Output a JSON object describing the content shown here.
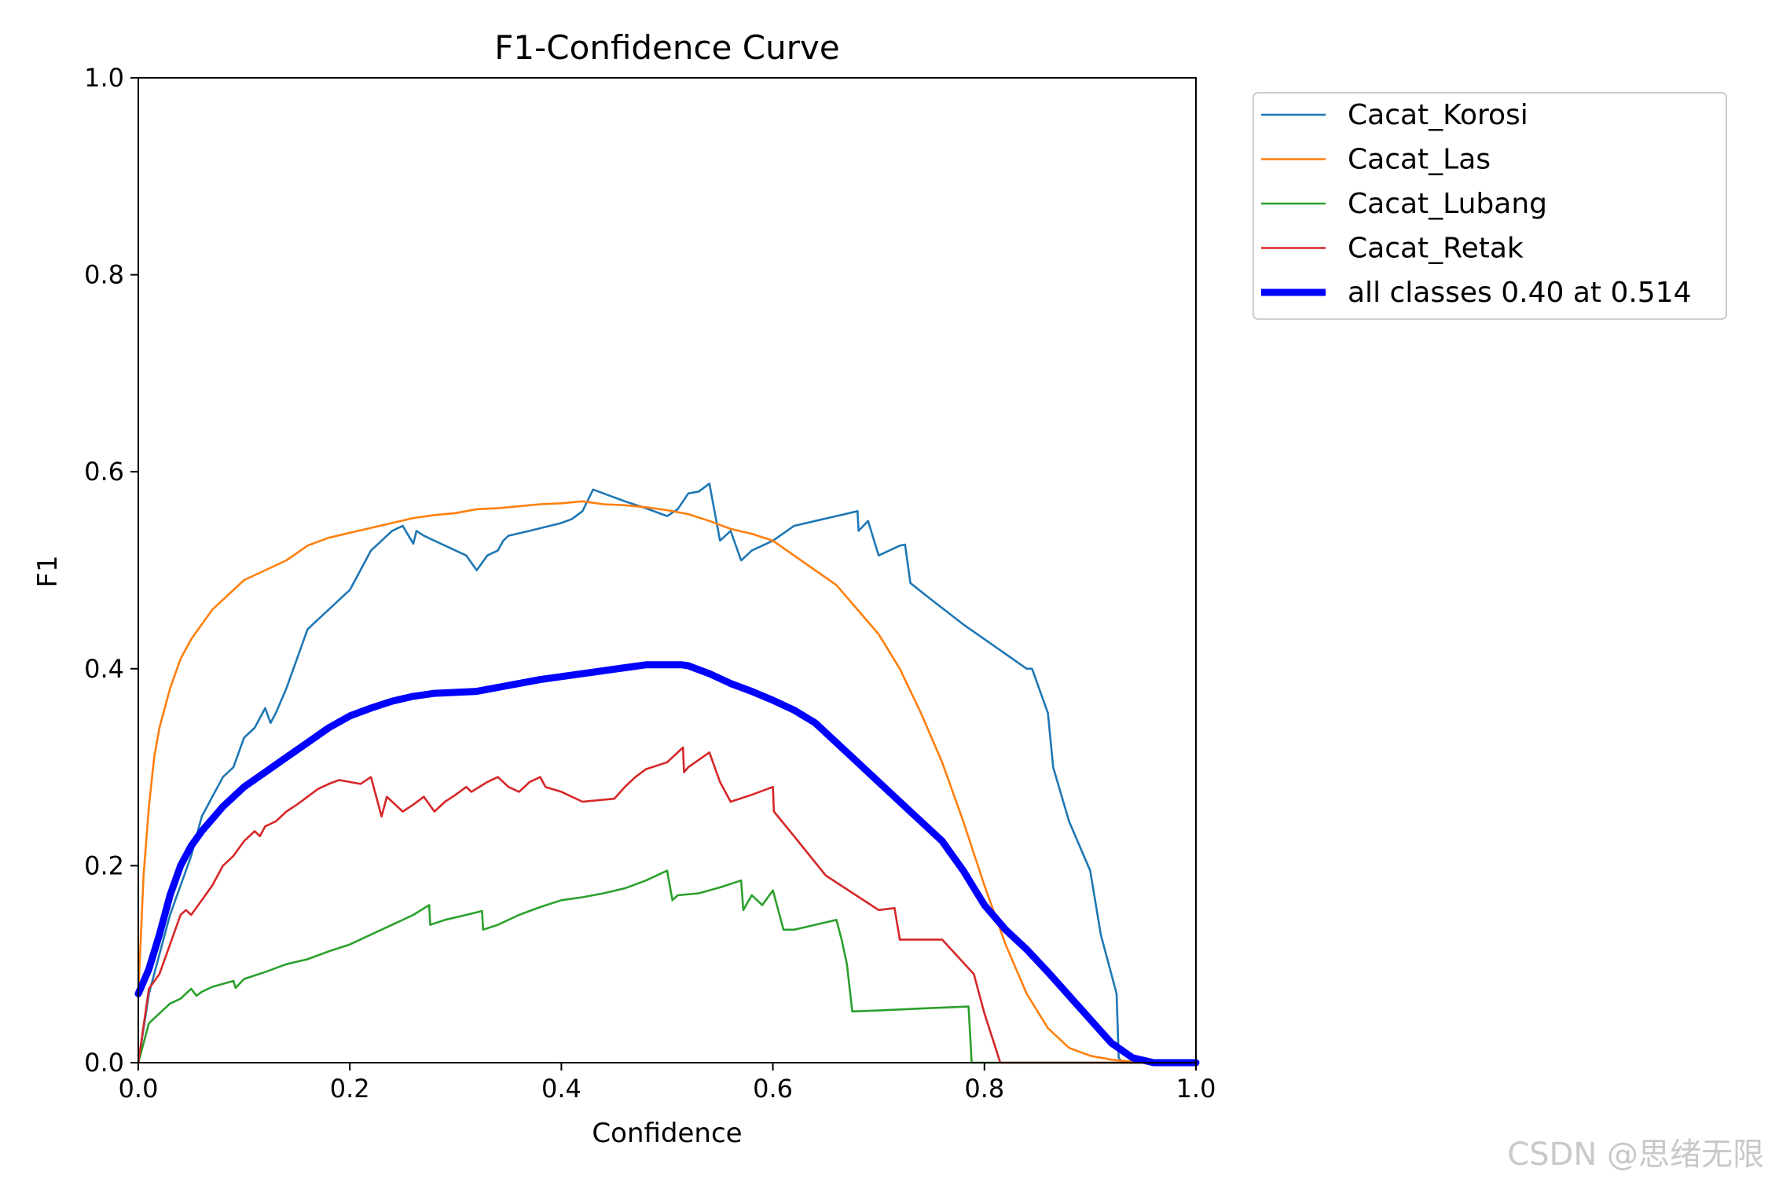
{
  "chart_data": {
    "type": "line",
    "title": "F1-Confidence Curve",
    "xlabel": "Confidence",
    "ylabel": "F1",
    "xlim": [
      0,
      1
    ],
    "ylim": [
      0,
      1
    ],
    "xticks": [
      "0.0",
      "0.2",
      "0.4",
      "0.6",
      "0.8",
      "1.0"
    ],
    "yticks": [
      "0.0",
      "0.2",
      "0.4",
      "0.6",
      "0.8",
      "1.0"
    ],
    "grid": false,
    "legend_position": "outside-top-right",
    "series": [
      {
        "name": "Cacat_Korosi",
        "color": "#1f77b4",
        "emphasis": false,
        "x": [
          0.0,
          0.01,
          0.02,
          0.03,
          0.04,
          0.05,
          0.06,
          0.07,
          0.08,
          0.09,
          0.1,
          0.11,
          0.12,
          0.125,
          0.13,
          0.14,
          0.15,
          0.16,
          0.17,
          0.18,
          0.19,
          0.2,
          0.21,
          0.22,
          0.23,
          0.24,
          0.25,
          0.26,
          0.263,
          0.27,
          0.28,
          0.29,
          0.3,
          0.31,
          0.32,
          0.33,
          0.34,
          0.345,
          0.35,
          0.37,
          0.4,
          0.41,
          0.42,
          0.43,
          0.44,
          0.46,
          0.48,
          0.5,
          0.51,
          0.52,
          0.53,
          0.54,
          0.55,
          0.56,
          0.57,
          0.58,
          0.6,
          0.62,
          0.64,
          0.66,
          0.68,
          0.681,
          0.69,
          0.7,
          0.71,
          0.72,
          0.725,
          0.73,
          0.75,
          0.78,
          0.8,
          0.82,
          0.84,
          0.845,
          0.86,
          0.865,
          0.88,
          0.9,
          0.91,
          0.925,
          0.927,
          0.93,
          1.0
        ],
        "y": [
          0.0,
          0.07,
          0.11,
          0.15,
          0.18,
          0.21,
          0.25,
          0.27,
          0.29,
          0.3,
          0.33,
          0.34,
          0.36,
          0.345,
          0.355,
          0.38,
          0.41,
          0.44,
          0.45,
          0.46,
          0.47,
          0.48,
          0.5,
          0.52,
          0.53,
          0.54,
          0.545,
          0.527,
          0.54,
          0.535,
          0.53,
          0.525,
          0.52,
          0.515,
          0.5,
          0.515,
          0.52,
          0.53,
          0.535,
          0.54,
          0.548,
          0.552,
          0.56,
          0.582,
          0.578,
          0.57,
          0.563,
          0.555,
          0.562,
          0.578,
          0.58,
          0.588,
          0.53,
          0.54,
          0.51,
          0.52,
          0.53,
          0.545,
          0.55,
          0.555,
          0.56,
          0.54,
          0.55,
          0.515,
          0.52,
          0.525,
          0.526,
          0.487,
          0.47,
          0.445,
          0.43,
          0.415,
          0.4,
          0.4,
          0.355,
          0.3,
          0.245,
          0.195,
          0.13,
          0.07,
          0.005,
          0.0,
          0.0
        ]
      },
      {
        "name": "Cacat_Las",
        "color": "#ff7f0e",
        "emphasis": false,
        "x": [
          0.0,
          0.005,
          0.01,
          0.015,
          0.02,
          0.03,
          0.04,
          0.05,
          0.06,
          0.07,
          0.08,
          0.1,
          0.12,
          0.14,
          0.16,
          0.18,
          0.2,
          0.22,
          0.24,
          0.26,
          0.28,
          0.3,
          0.32,
          0.34,
          0.36,
          0.38,
          0.4,
          0.42,
          0.44,
          0.46,
          0.48,
          0.5,
          0.52,
          0.54,
          0.56,
          0.58,
          0.6,
          0.62,
          0.64,
          0.66,
          0.68,
          0.7,
          0.72,
          0.74,
          0.76,
          0.78,
          0.8,
          0.82,
          0.84,
          0.86,
          0.88,
          0.9,
          0.92,
          0.94,
          0.96,
          1.0
        ],
        "y": [
          0.07,
          0.19,
          0.26,
          0.31,
          0.34,
          0.38,
          0.41,
          0.43,
          0.445,
          0.46,
          0.47,
          0.49,
          0.5,
          0.51,
          0.525,
          0.533,
          0.538,
          0.543,
          0.548,
          0.553,
          0.556,
          0.558,
          0.562,
          0.563,
          0.565,
          0.567,
          0.568,
          0.57,
          0.567,
          0.566,
          0.564,
          0.561,
          0.557,
          0.55,
          0.542,
          0.537,
          0.53,
          0.515,
          0.5,
          0.485,
          0.46,
          0.435,
          0.4,
          0.355,
          0.305,
          0.245,
          0.18,
          0.12,
          0.07,
          0.035,
          0.015,
          0.007,
          0.003,
          0.001,
          0.0,
          0.0
        ]
      },
      {
        "name": "Cacat_Lubang",
        "color": "#2ca02c",
        "emphasis": false,
        "x": [
          0.0,
          0.01,
          0.02,
          0.03,
          0.04,
          0.05,
          0.055,
          0.06,
          0.07,
          0.08,
          0.09,
          0.092,
          0.1,
          0.12,
          0.14,
          0.16,
          0.18,
          0.2,
          0.22,
          0.24,
          0.26,
          0.275,
          0.276,
          0.29,
          0.31,
          0.325,
          0.326,
          0.34,
          0.36,
          0.38,
          0.4,
          0.42,
          0.44,
          0.46,
          0.48,
          0.49,
          0.5,
          0.505,
          0.51,
          0.53,
          0.55,
          0.57,
          0.572,
          0.58,
          0.59,
          0.6,
          0.61,
          0.62,
          0.64,
          0.66,
          0.665,
          0.67,
          0.675,
          0.7,
          0.74,
          0.785,
          0.788,
          0.79,
          1.0
        ],
        "y": [
          0.0,
          0.04,
          0.05,
          0.06,
          0.065,
          0.075,
          0.068,
          0.072,
          0.077,
          0.08,
          0.083,
          0.076,
          0.085,
          0.092,
          0.1,
          0.105,
          0.113,
          0.12,
          0.13,
          0.14,
          0.15,
          0.16,
          0.14,
          0.145,
          0.15,
          0.154,
          0.135,
          0.14,
          0.15,
          0.158,
          0.165,
          0.168,
          0.172,
          0.177,
          0.185,
          0.19,
          0.195,
          0.165,
          0.17,
          0.172,
          0.178,
          0.185,
          0.155,
          0.17,
          0.16,
          0.175,
          0.135,
          0.135,
          0.14,
          0.145,
          0.125,
          0.1,
          0.052,
          0.053,
          0.055,
          0.057,
          0.0,
          0.0,
          0.0
        ]
      },
      {
        "name": "Cacat_Retak",
        "color": "#d62728",
        "emphasis": false,
        "x": [
          0.0,
          0.01,
          0.02,
          0.03,
          0.04,
          0.045,
          0.05,
          0.06,
          0.07,
          0.08,
          0.09,
          0.1,
          0.11,
          0.115,
          0.12,
          0.13,
          0.14,
          0.15,
          0.16,
          0.17,
          0.18,
          0.19,
          0.2,
          0.21,
          0.22,
          0.23,
          0.235,
          0.25,
          0.26,
          0.27,
          0.28,
          0.29,
          0.3,
          0.31,
          0.315,
          0.33,
          0.34,
          0.35,
          0.36,
          0.37,
          0.38,
          0.385,
          0.4,
          0.42,
          0.45,
          0.46,
          0.47,
          0.48,
          0.5,
          0.515,
          0.516,
          0.52,
          0.54,
          0.55,
          0.56,
          0.58,
          0.6,
          0.601,
          0.62,
          0.65,
          0.7,
          0.715,
          0.72,
          0.76,
          0.79,
          0.8,
          0.815,
          1.0
        ],
        "y": [
          0.0,
          0.075,
          0.09,
          0.12,
          0.15,
          0.155,
          0.15,
          0.165,
          0.18,
          0.2,
          0.21,
          0.225,
          0.235,
          0.23,
          0.24,
          0.245,
          0.255,
          0.262,
          0.27,
          0.278,
          0.283,
          0.287,
          0.285,
          0.283,
          0.29,
          0.25,
          0.27,
          0.255,
          0.262,
          0.27,
          0.255,
          0.265,
          0.272,
          0.28,
          0.275,
          0.285,
          0.29,
          0.28,
          0.275,
          0.285,
          0.29,
          0.28,
          0.275,
          0.265,
          0.268,
          0.28,
          0.29,
          0.298,
          0.305,
          0.32,
          0.295,
          0.3,
          0.315,
          0.285,
          0.265,
          0.272,
          0.28,
          0.255,
          0.23,
          0.19,
          0.155,
          0.157,
          0.125,
          0.125,
          0.09,
          0.05,
          0.0,
          0.0
        ]
      },
      {
        "name": "all classes 0.40 at 0.514",
        "color": "#0000ff",
        "emphasis": true,
        "x": [
          0.0,
          0.01,
          0.02,
          0.03,
          0.04,
          0.05,
          0.06,
          0.08,
          0.1,
          0.12,
          0.14,
          0.16,
          0.18,
          0.2,
          0.22,
          0.24,
          0.26,
          0.28,
          0.3,
          0.32,
          0.34,
          0.36,
          0.38,
          0.4,
          0.42,
          0.44,
          0.46,
          0.48,
          0.5,
          0.514,
          0.52,
          0.54,
          0.56,
          0.58,
          0.6,
          0.62,
          0.64,
          0.66,
          0.68,
          0.7,
          0.72,
          0.74,
          0.76,
          0.78,
          0.8,
          0.82,
          0.84,
          0.86,
          0.88,
          0.9,
          0.92,
          0.94,
          0.96,
          1.0
        ],
        "y": [
          0.07,
          0.095,
          0.13,
          0.17,
          0.2,
          0.22,
          0.235,
          0.26,
          0.28,
          0.295,
          0.31,
          0.325,
          0.34,
          0.352,
          0.36,
          0.367,
          0.372,
          0.375,
          0.376,
          0.377,
          0.381,
          0.385,
          0.389,
          0.392,
          0.395,
          0.398,
          0.401,
          0.404,
          0.404,
          0.404,
          0.403,
          0.395,
          0.385,
          0.377,
          0.368,
          0.358,
          0.345,
          0.325,
          0.305,
          0.285,
          0.265,
          0.245,
          0.225,
          0.195,
          0.16,
          0.135,
          0.115,
          0.092,
          0.068,
          0.044,
          0.02,
          0.005,
          0.0,
          0.0
        ]
      }
    ]
  },
  "watermark": "CSDN @思绪无限"
}
